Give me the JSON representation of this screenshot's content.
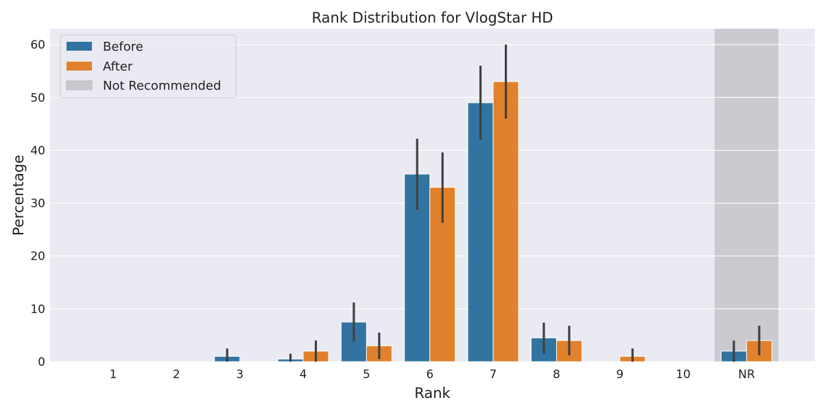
{
  "chart_data": {
    "type": "bar",
    "title": "Rank Distribution for VlogStar HD",
    "xlabel": "Rank",
    "ylabel": "Percentage",
    "categories": [
      "1",
      "2",
      "3",
      "4",
      "5",
      "6",
      "7",
      "8",
      "9",
      "10",
      "NR"
    ],
    "ylim": [
      0,
      63
    ],
    "yticks": [
      0,
      10,
      20,
      30,
      40,
      50,
      60
    ],
    "grid": true,
    "legend_position": "top-left",
    "series": [
      {
        "name": "Before",
        "color": "#3274a1",
        "values": [
          0,
          0,
          1,
          0.5,
          7.5,
          35.5,
          49,
          4.5,
          0,
          0,
          2
        ],
        "err_low": [
          0,
          0,
          0,
          0,
          3.8,
          28.7,
          42,
          1.5,
          0,
          0,
          0
        ],
        "err_high": [
          0,
          0,
          2.5,
          1.5,
          11.2,
          42.2,
          56,
          7.4,
          0,
          0,
          4
        ]
      },
      {
        "name": "After",
        "color": "#e1812c",
        "values": [
          0,
          0,
          0,
          2,
          3,
          33,
          53,
          4,
          1,
          0,
          4
        ],
        "err_low": [
          0,
          0,
          0,
          0,
          0.5,
          26.3,
          46,
          1.2,
          0,
          0,
          1.2
        ],
        "err_high": [
          0,
          0,
          0,
          4,
          5.5,
          39.6,
          60,
          6.8,
          2.5,
          0,
          6.8
        ]
      }
    ],
    "highlight": {
      "category": "NR",
      "label": "Not Recommended",
      "color": "#c9c8cd"
    }
  }
}
